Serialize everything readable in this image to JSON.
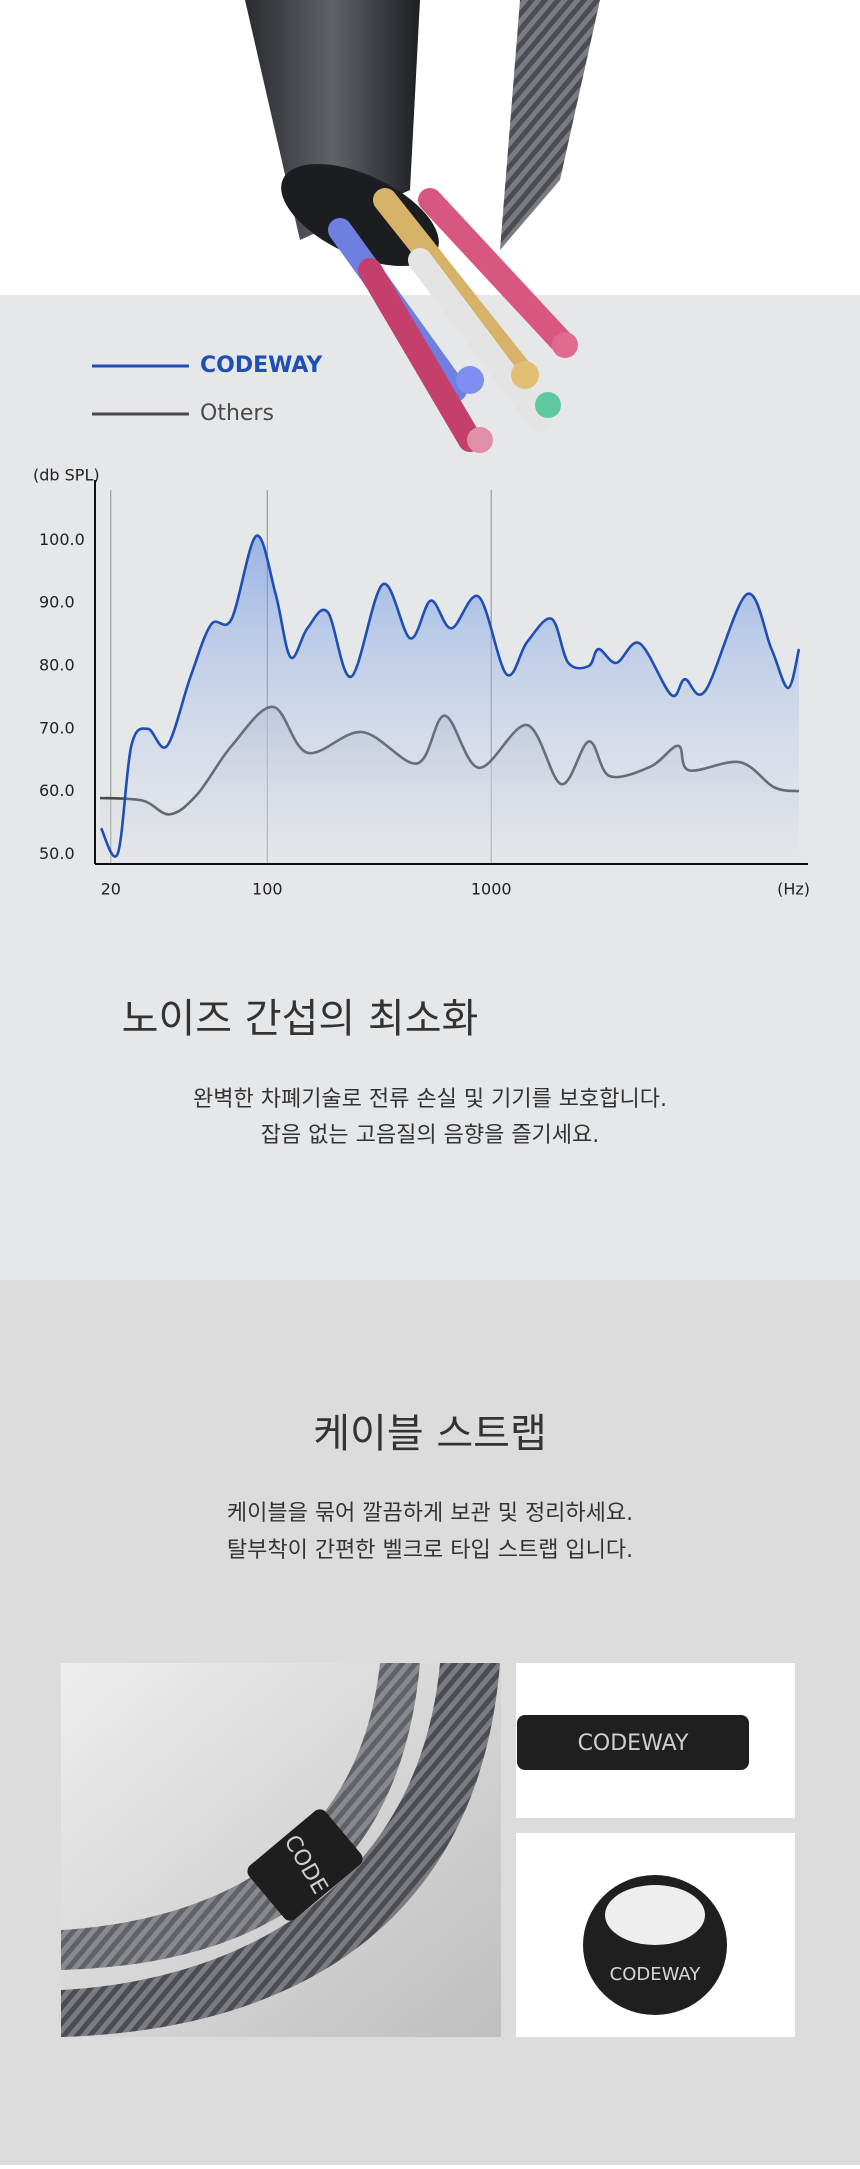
{
  "chart_data": {
    "type": "line",
    "ylabel": "(db SPL)",
    "xlabel": "(Hz)",
    "xlog": true,
    "xlim": [
      17,
      26000
    ],
    "xticks": [
      20,
      100,
      1000
    ],
    "ylim": [
      48.5,
      108
    ],
    "yticks": [
      {
        "value": 50,
        "label": "50.0"
      },
      {
        "value": 60,
        "label": "60.0"
      },
      {
        "value": 70,
        "label": "70.0"
      },
      {
        "value": 80,
        "label": "80.0"
      },
      {
        "value": 90,
        "label": "90.0"
      },
      {
        "value": 100,
        "label": "100.0"
      }
    ],
    "grid": true,
    "series": [
      {
        "name": "Others",
        "color": "#4a4a4a",
        "x": [
          17.9,
          27.7,
          36.7,
          48.7,
          69.3,
          106,
          151,
          265,
          467,
          620,
          881,
          1446,
          2056,
          2730,
          3374,
          5152,
          6840,
          7660,
          12900,
          18360,
          23700
        ],
        "values": [
          59,
          58.6,
          56.4,
          59.6,
          67.3,
          73.5,
          66.2,
          69.5,
          64.5,
          72.1,
          63.8,
          70.6,
          61.2,
          68,
          62.5,
          64,
          67.3,
          63.4,
          64.7,
          60.7,
          60.1
        ]
      },
      {
        "name": "CODEWAY",
        "color": "#1f4fb4",
        "x": [
          18.1,
          21.5,
          24.7,
          29.3,
          35.7,
          45.4,
          56.1,
          69.3,
          89.3,
          109,
          127,
          151,
          186,
          237,
          328,
          435,
          537,
          664,
          881,
          1170,
          1446,
          1862,
          2208,
          2730,
          3014,
          3622,
          4604,
          6370,
          7330,
          9060,
          13840,
          17860,
          21180,
          23700
        ],
        "values": [
          54.2,
          50.2,
          67.3,
          70,
          67.3,
          78.3,
          86.6,
          87.5,
          100.7,
          91.4,
          81.4,
          86,
          88.6,
          78.3,
          93,
          84.4,
          90.4,
          86,
          91,
          78.7,
          83.8,
          87.5,
          80.5,
          80,
          82.7,
          80.5,
          83.6,
          75.4,
          77.9,
          76.1,
          91.4,
          82.7,
          76.5,
          82.7
        ]
      }
    ]
  },
  "noise": {
    "title": "노이즈 간섭의 최소화",
    "lines": [
      "완벽한 차폐기술로 전류 손실 및 기기를 보호합니다.",
      "잡음 없는 고음질의 음향을 즐기세요."
    ]
  },
  "strap": {
    "title": "케이블 스트랩",
    "lines": [
      "케이블을 묶어 깔끔하게 보관 및 정리하세요.",
      "탈부착이 간편한 벨크로 타입 스트랩 입니다."
    ],
    "brand": "CODEWAY",
    "cable_brand": "CODE"
  }
}
